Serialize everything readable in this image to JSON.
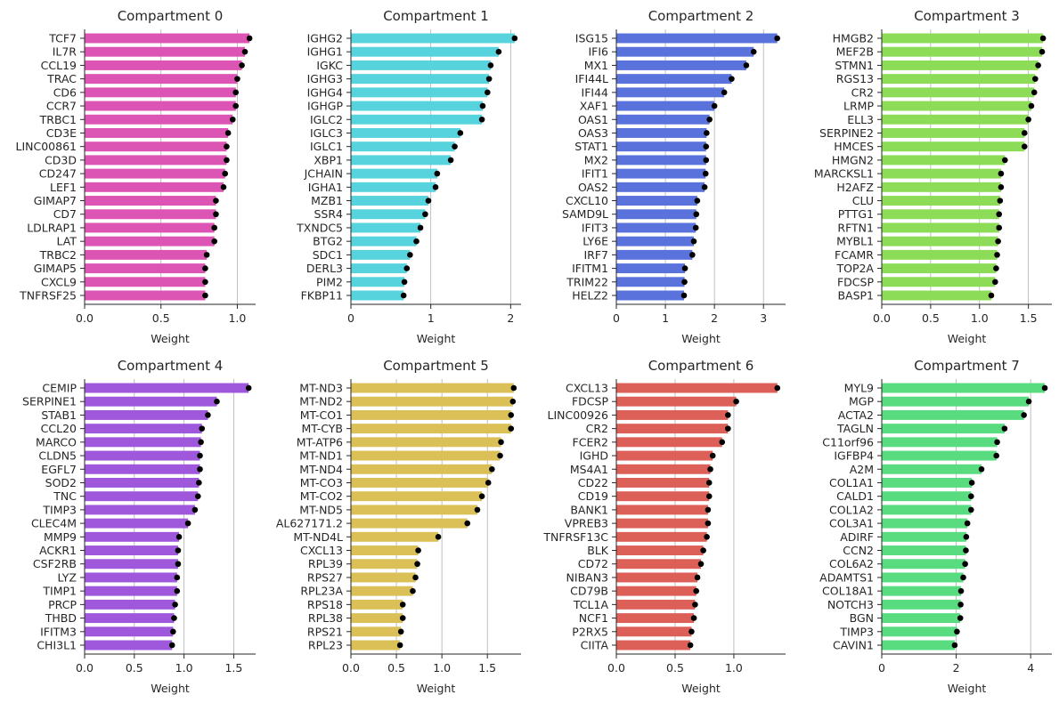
{
  "chart_data": [
    {
      "type": "bar",
      "title": "Compartment 0",
      "xlabel": "Weight",
      "color": "#dd55b4",
      "xlim": [
        0,
        1.12
      ],
      "xticks": [
        0.0,
        0.5,
        1.0
      ],
      "xtick_labels": [
        "0.0",
        "0.5",
        "1.0"
      ],
      "categories": [
        "TCF7",
        "IL7R",
        "CCL19",
        "TRAC",
        "CD6",
        "CCR7",
        "TRBC1",
        "CD3E",
        "LINC00861",
        "CD3D",
        "CD247",
        "LEF1",
        "GIMAP7",
        "CD7",
        "LDLRAP1",
        "LAT",
        "TRBC2",
        "GIMAP5",
        "CXCL9",
        "TNFRSF25"
      ],
      "values": [
        1.08,
        1.05,
        1.03,
        1.0,
        0.99,
        0.99,
        0.97,
        0.94,
        0.93,
        0.93,
        0.92,
        0.91,
        0.86,
        0.86,
        0.85,
        0.85,
        0.8,
        0.79,
        0.79,
        0.79
      ],
      "grid": "x"
    },
    {
      "type": "bar",
      "title": "Compartment 1",
      "xlabel": "Weight",
      "color": "#56d3dc",
      "xlim": [
        0,
        2.13
      ],
      "xticks": [
        0,
        1,
        2
      ],
      "xtick_labels": [
        "0",
        "1",
        "2"
      ],
      "categories": [
        "IGHG2",
        "IGHG1",
        "IGKC",
        "IGHG3",
        "IGHG4",
        "IGHGP",
        "IGLC2",
        "IGLC3",
        "IGLC1",
        "XBP1",
        "JCHAIN",
        "IGHA1",
        "MZB1",
        "SSR4",
        "TXNDC5",
        "BTG2",
        "SDC1",
        "DERL3",
        "PIM2",
        "FKBP11"
      ],
      "values": [
        2.05,
        1.85,
        1.75,
        1.73,
        1.71,
        1.65,
        1.64,
        1.37,
        1.3,
        1.25,
        1.08,
        1.06,
        0.97,
        0.93,
        0.87,
        0.82,
        0.74,
        0.7,
        0.67,
        0.66
      ],
      "grid": "x"
    },
    {
      "type": "bar",
      "title": "Compartment 2",
      "xlabel": "Weight",
      "color": "#5a72dc",
      "xlim": [
        0,
        3.45
      ],
      "xticks": [
        0,
        1,
        2,
        3
      ],
      "xtick_labels": [
        "0",
        "1",
        "2",
        "3"
      ],
      "categories": [
        "ISG15",
        "IFI6",
        "MX1",
        "IFI44L",
        "IFI44",
        "XAF1",
        "OAS1",
        "OAS3",
        "STAT1",
        "MX2",
        "IFIT1",
        "OAS2",
        "CXCL10",
        "SAMD9L",
        "IFIT3",
        "LY6E",
        "IRF7",
        "IFITM1",
        "TRIM22",
        "HELZ2"
      ],
      "values": [
        3.28,
        2.8,
        2.65,
        2.35,
        2.2,
        2.0,
        1.9,
        1.84,
        1.83,
        1.83,
        1.82,
        1.8,
        1.65,
        1.63,
        1.62,
        1.58,
        1.55,
        1.4,
        1.39,
        1.38
      ],
      "grid": "x"
    },
    {
      "type": "bar",
      "title": "Compartment 3",
      "xlabel": "Weight",
      "color": "#8ddc57",
      "xlim": [
        0,
        1.74
      ],
      "xticks": [
        0.0,
        0.5,
        1.0,
        1.5
      ],
      "xtick_labels": [
        "0.0",
        "0.5",
        "1.0",
        "1.5"
      ],
      "categories": [
        "HMGB2",
        "MEF2B",
        "STMN1",
        "RGS13",
        "CR2",
        "LRMP",
        "ELL3",
        "SERPINE2",
        "HMCES",
        "HMGN2",
        "MARCKSL1",
        "H2AFZ",
        "CLU",
        "PTTG1",
        "RFTN1",
        "MYBL1",
        "FCAMR",
        "TOP2A",
        "FDCSP",
        "BASP1"
      ],
      "values": [
        1.65,
        1.64,
        1.6,
        1.57,
        1.56,
        1.53,
        1.5,
        1.46,
        1.46,
        1.26,
        1.22,
        1.22,
        1.21,
        1.2,
        1.2,
        1.19,
        1.18,
        1.17,
        1.16,
        1.12
      ],
      "grid": "x"
    },
    {
      "type": "bar",
      "title": "Compartment 4",
      "xlabel": "Weight",
      "color": "#9f58dc",
      "xlim": [
        0,
        1.72
      ],
      "xticks": [
        0.0,
        0.5,
        1.0,
        1.5
      ],
      "xtick_labels": [
        "0.0",
        "0.5",
        "1.0",
        "1.5"
      ],
      "categories": [
        "CEMIP",
        "SERPINE1",
        "STAB1",
        "CCL20",
        "MARCO",
        "CLDN5",
        "EGFL7",
        "SOD2",
        "TNC",
        "TIMP3",
        "CLEC4M",
        "MMP9",
        "ACKR1",
        "CSF2RB",
        "LYZ",
        "TIMP1",
        "PRCP",
        "THBD",
        "IFITM3",
        "CHI3L1"
      ],
      "values": [
        1.65,
        1.33,
        1.24,
        1.18,
        1.17,
        1.16,
        1.16,
        1.15,
        1.14,
        1.11,
        1.04,
        0.95,
        0.94,
        0.94,
        0.93,
        0.93,
        0.91,
        0.9,
        0.89,
        0.88
      ],
      "grid": "x"
    },
    {
      "type": "bar",
      "title": "Compartment 5",
      "xlabel": "Weight",
      "color": "#dbc057",
      "xlim": [
        0,
        1.87
      ],
      "xticks": [
        0.0,
        0.5,
        1.0,
        1.5
      ],
      "xtick_labels": [
        "0.0",
        "0.5",
        "1.0",
        "1.5"
      ],
      "categories": [
        "MT-ND3",
        "MT-ND2",
        "MT-CO1",
        "MT-CYB",
        "MT-ATP6",
        "MT-ND1",
        "MT-ND4",
        "MT-CO3",
        "MT-CO2",
        "MT-ND5",
        "AL627171.2",
        "MT-ND4L",
        "CXCL13",
        "RPL39",
        "RPS27",
        "RPL23A",
        "RPS18",
        "RPL38",
        "RPS21",
        "RPL23"
      ],
      "values": [
        1.79,
        1.78,
        1.76,
        1.76,
        1.65,
        1.64,
        1.55,
        1.51,
        1.44,
        1.39,
        1.28,
        0.96,
        0.74,
        0.73,
        0.71,
        0.68,
        0.57,
        0.57,
        0.55,
        0.54
      ],
      "grid": "x"
    },
    {
      "type": "bar",
      "title": "Compartment 6",
      "xlabel": "Weight",
      "color": "#dc6058",
      "xlim": [
        0,
        1.44
      ],
      "xticks": [
        0.0,
        0.5,
        1.0
      ],
      "xtick_labels": [
        "0.0",
        "0.5",
        "1.0"
      ],
      "categories": [
        "CXCL13",
        "FDCSP",
        "LINC00926",
        "CR2",
        "FCER2",
        "IGHD",
        "MS4A1",
        "CD22",
        "CD19",
        "BANK1",
        "VPREB3",
        "TNFRSF13C",
        "BLK",
        "CD72",
        "NIBAN3",
        "CD79B",
        "TCL1A",
        "NCF1",
        "P2RX5",
        "CIITA"
      ],
      "values": [
        1.37,
        1.02,
        0.95,
        0.95,
        0.9,
        0.82,
        0.8,
        0.79,
        0.79,
        0.78,
        0.78,
        0.77,
        0.74,
        0.72,
        0.69,
        0.68,
        0.67,
        0.66,
        0.64,
        0.63
      ],
      "grid": "x"
    },
    {
      "type": "bar",
      "title": "Compartment 7",
      "xlabel": "Weight",
      "color": "#58dc7f",
      "xlim": [
        0,
        4.57
      ],
      "xticks": [
        0,
        2,
        4
      ],
      "xtick_labels": [
        "0",
        "2",
        "4"
      ],
      "categories": [
        "MYL9",
        "MGP",
        "ACTA2",
        "TAGLN",
        "C11orf96",
        "IGFBP4",
        "A2M",
        "COL1A1",
        "CALD1",
        "COL1A2",
        "COL3A1",
        "ADIRF",
        "CCN2",
        "COL6A2",
        "ADAMTS1",
        "COL18A1",
        "NOTCH3",
        "BGN",
        "TIMP3",
        "CAVIN1"
      ],
      "values": [
        4.38,
        3.95,
        3.82,
        3.3,
        3.1,
        3.08,
        2.68,
        2.42,
        2.4,
        2.4,
        2.3,
        2.27,
        2.26,
        2.24,
        2.19,
        2.13,
        2.12,
        2.11,
        2.02,
        1.96
      ],
      "grid": "x"
    }
  ]
}
